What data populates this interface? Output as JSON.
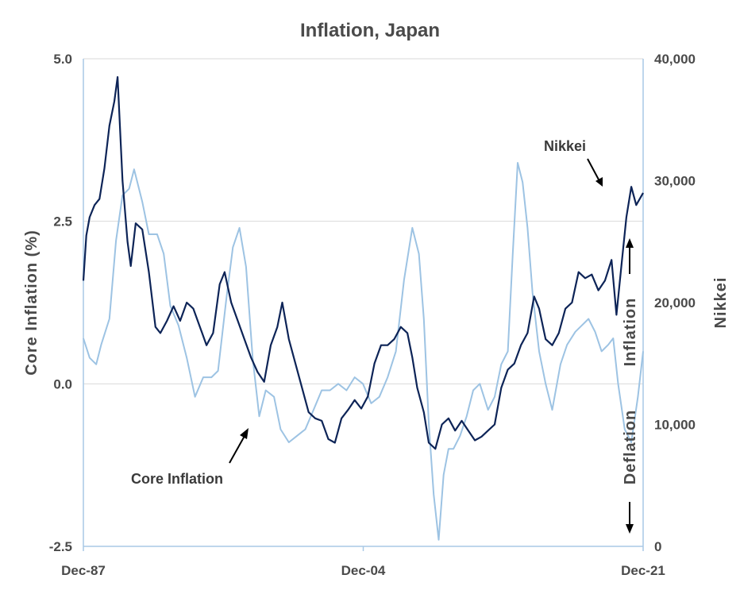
{
  "chart_data": {
    "type": "line",
    "title": "Inflation, Japan",
    "ylabel_left": "Core Inflation (%)",
    "ylabel_right": "Nikkei",
    "x_ticks": [
      "Dec-87",
      "Dec-04",
      "Dec-21"
    ],
    "x_range": [
      1987.92,
      2021.92
    ],
    "ylim_left": [
      -2.5,
      5.0
    ],
    "ylim_right": [
      0,
      40000
    ],
    "y_ticks_left": [
      "5.0",
      "2.5",
      "0.0",
      "-2.5"
    ],
    "y_ticks_left_values": [
      5.0,
      2.5,
      0.0,
      -2.5
    ],
    "y_ticks_right": [
      "40,000",
      "30,000",
      "20,000",
      "10,000",
      "0"
    ],
    "y_ticks_right_values": [
      40000,
      30000,
      20000,
      10000,
      0
    ],
    "grid": "horizontal",
    "annotations": {
      "nikkei_label": "Nikkei",
      "core_label": "Core Inflation",
      "inflation_label": "Inflation",
      "deflation_label": "Deflation"
    },
    "colors": {
      "nikkei": "#0d2457",
      "core": "#9dc3e3",
      "grid": "#d9d9d9",
      "axis": "#a9c9e6"
    },
    "series": [
      {
        "axis": "left",
        "color": "#9dc3e3",
        "x": [
          1987.92,
          1988.3,
          1988.7,
          1989.0,
          1989.5,
          1989.9,
          1990.3,
          1990.7,
          1991.0,
          1991.5,
          1991.9,
          1992.4,
          1992.8,
          1993.2,
          1993.7,
          1994.2,
          1994.7,
          1995.2,
          1995.7,
          1996.1,
          1996.6,
          1997.0,
          1997.4,
          1997.8,
          1998.2,
          1998.6,
          1999.0,
          1999.5,
          1999.9,
          2000.4,
          2000.9,
          2001.4,
          2001.9,
          2002.4,
          2002.9,
          2003.4,
          2003.9,
          2004.4,
          2004.9,
          2005.4,
          2005.9,
          2006.4,
          2006.9,
          2007.4,
          2007.9,
          2008.3,
          2008.6,
          2008.9,
          2009.2,
          2009.5,
          2009.8,
          2010.1,
          2010.4,
          2010.8,
          2011.2,
          2011.6,
          2012.0,
          2012.5,
          2012.9,
          2013.3,
          2013.7,
          2014.0,
          2014.3,
          2014.6,
          2014.9,
          2015.2,
          2015.6,
          2016.0,
          2016.4,
          2016.9,
          2017.3,
          2017.8,
          2018.2,
          2018.6,
          2019.0,
          2019.4,
          2019.8,
          2020.1,
          2020.4,
          2020.8,
          2021.2,
          2021.6,
          2021.92
        ],
        "values": [
          0.7,
          0.4,
          0.3,
          0.6,
          1.0,
          2.2,
          2.9,
          3.0,
          3.3,
          2.8,
          2.3,
          2.3,
          2.0,
          1.2,
          0.9,
          0.4,
          -0.2,
          0.1,
          0.1,
          0.2,
          1.3,
          2.1,
          2.4,
          1.8,
          0.4,
          -0.5,
          -0.1,
          -0.2,
          -0.7,
          -0.9,
          -0.8,
          -0.7,
          -0.4,
          -0.1,
          -0.1,
          0.0,
          -0.1,
          0.1,
          0.0,
          -0.3,
          -0.2,
          0.1,
          0.5,
          1.6,
          2.4,
          2.0,
          1.0,
          -0.6,
          -1.7,
          -2.4,
          -1.4,
          -1.0,
          -1.0,
          -0.8,
          -0.5,
          -0.1,
          0.0,
          -0.4,
          -0.2,
          0.3,
          0.5,
          2.0,
          3.4,
          3.1,
          2.4,
          1.4,
          0.5,
          0.0,
          -0.4,
          0.3,
          0.6,
          0.8,
          0.9,
          1.0,
          0.8,
          0.5,
          0.6,
          0.7,
          0.0,
          -0.7,
          -0.9,
          -0.2,
          0.5
        ]
      },
      {
        "axis": "right",
        "color": "#0d2457",
        "x": [
          1987.92,
          1988.1,
          1988.3,
          1988.6,
          1988.9,
          1989.2,
          1989.5,
          1989.8,
          1990.0,
          1990.3,
          1990.6,
          1990.8,
          1991.1,
          1991.5,
          1991.9,
          1992.3,
          1992.6,
          1993.0,
          1993.4,
          1993.8,
          1994.2,
          1994.6,
          1995.0,
          1995.4,
          1995.8,
          1996.2,
          1996.5,
          1996.9,
          1997.3,
          1997.7,
          1998.1,
          1998.5,
          1998.9,
          1999.3,
          1999.7,
          2000.0,
          2000.4,
          2000.8,
          2001.2,
          2001.6,
          2002.0,
          2002.4,
          2002.8,
          2003.2,
          2003.6,
          2004.0,
          2004.4,
          2004.8,
          2005.2,
          2005.6,
          2006.0,
          2006.4,
          2006.8,
          2007.2,
          2007.6,
          2007.9,
          2008.2,
          2008.6,
          2008.9,
          2009.3,
          2009.7,
          2010.1,
          2010.5,
          2010.9,
          2011.3,
          2011.7,
          2012.1,
          2012.5,
          2012.9,
          2013.3,
          2013.7,
          2014.1,
          2014.5,
          2014.9,
          2015.3,
          2015.6,
          2016.0,
          2016.4,
          2016.8,
          2017.2,
          2017.6,
          2018.0,
          2018.4,
          2018.8,
          2019.2,
          2019.6,
          2020.0,
          2020.3,
          2020.6,
          2020.9,
          2021.2,
          2021.5,
          2021.92
        ],
        "values": [
          21800,
          25500,
          27000,
          28000,
          28500,
          31000,
          34500,
          36500,
          38500,
          30000,
          25000,
          23000,
          26500,
          26000,
          22500,
          18000,
          17500,
          18500,
          19700,
          18500,
          20000,
          19500,
          18000,
          16500,
          17500,
          21500,
          22500,
          20000,
          18500,
          17000,
          15500,
          14300,
          13500,
          16500,
          18000,
          20000,
          17000,
          15000,
          13000,
          11000,
          10500,
          10300,
          8800,
          8500,
          10500,
          11200,
          12000,
          11300,
          12300,
          15000,
          16500,
          16500,
          17000,
          18000,
          17500,
          15500,
          13000,
          11000,
          8500,
          8000,
          10000,
          10500,
          9500,
          10300,
          9500,
          8700,
          9000,
          9500,
          10000,
          13000,
          14500,
          15000,
          16500,
          17500,
          20500,
          19500,
          17000,
          16500,
          17500,
          19500,
          20000,
          22500,
          22000,
          22300,
          21000,
          21800,
          23500,
          19000,
          23000,
          27000,
          29500,
          28000,
          29000
        ]
      }
    ]
  }
}
